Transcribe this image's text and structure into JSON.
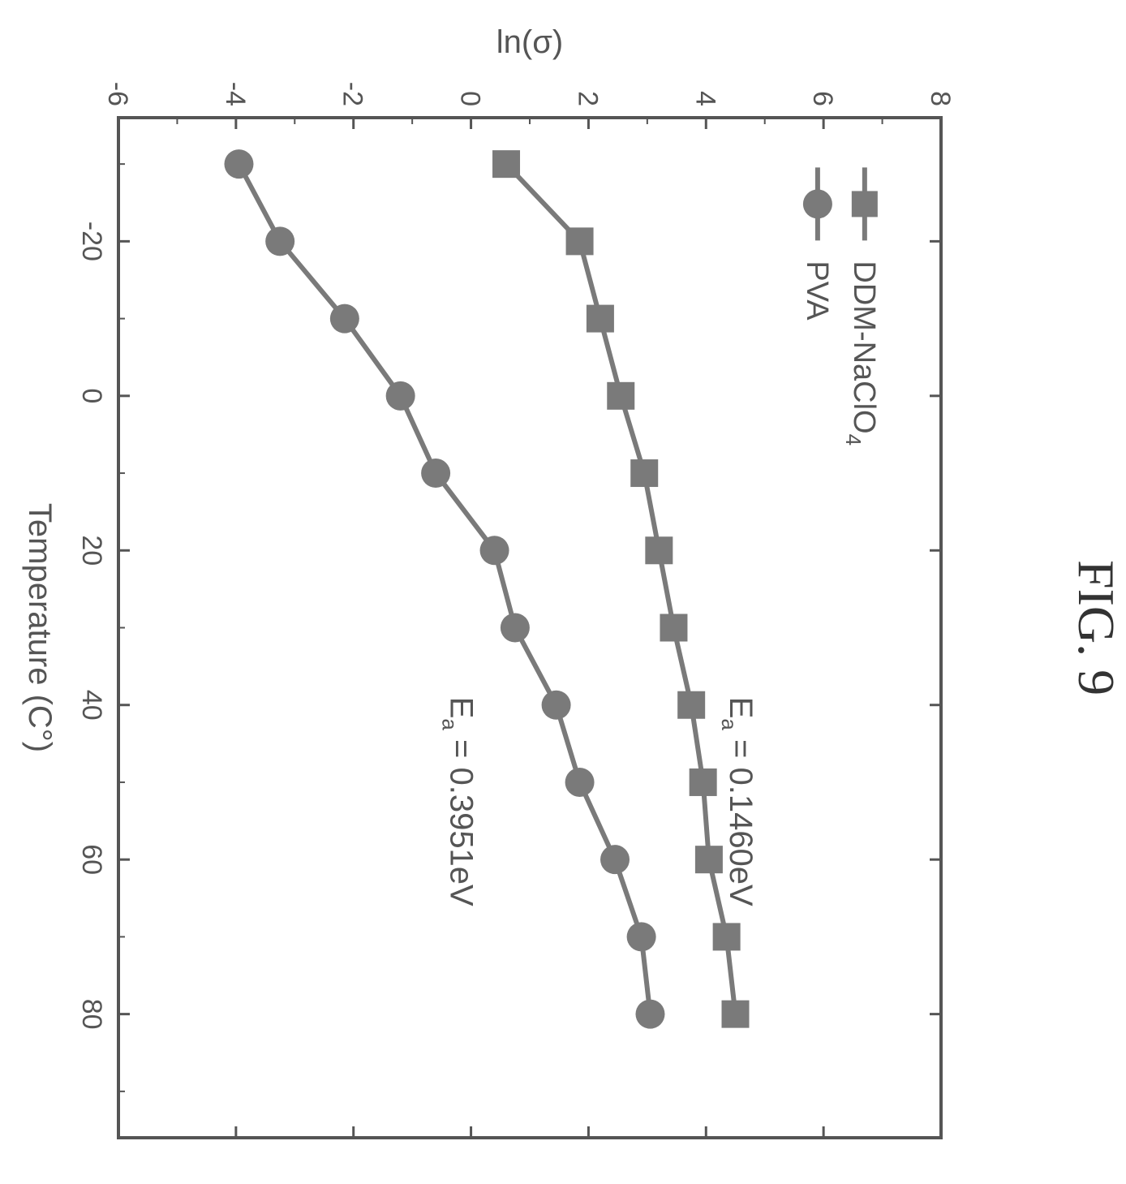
{
  "figure_label": "FIG. 9",
  "chart_data": {
    "type": "line",
    "xlabel": "Temperature (C°)",
    "ylabel": "ln(σ)",
    "xlim": [
      -36,
      96
    ],
    "ylim": [
      -6,
      8
    ],
    "x_ticks": [
      "-20",
      "0",
      "20",
      "40",
      "60",
      "80"
    ],
    "x_tick_values": [
      -20,
      0,
      20,
      40,
      60,
      80
    ],
    "y_ticks": [
      "-6",
      "-4",
      "-2",
      "0",
      "2",
      "4",
      "6",
      "8"
    ],
    "y_tick_values": [
      -6,
      -4,
      -2,
      0,
      2,
      4,
      6,
      8
    ],
    "x": [
      -30,
      -20,
      -10,
      0,
      10,
      20,
      30,
      40,
      50,
      60,
      70,
      80
    ],
    "series": [
      {
        "name": "DDM-NaClO4",
        "legend_label": "DDM-NaClO",
        "legend_subscript": "4",
        "marker": "square",
        "color": "#7a7a7a",
        "values": [
          0.6,
          1.85,
          2.2,
          2.55,
          2.95,
          3.2,
          3.45,
          3.75,
          3.95,
          4.05,
          4.35,
          4.5
        ]
      },
      {
        "name": "PVA",
        "legend_label": "PVA",
        "marker": "circle",
        "color": "#7a7a7a",
        "values": [
          -3.95,
          -3.25,
          -2.15,
          -1.2,
          -0.6,
          0.4,
          0.75,
          1.45,
          1.85,
          2.45,
          2.9,
          3.05
        ]
      }
    ],
    "annotations": [
      {
        "prefix": "E",
        "subscript": "a",
        "text": " = 0.1460eV",
        "x": 40,
        "y": 4.6
      },
      {
        "prefix": "E",
        "subscript": "a",
        "text": " = 0.3951eV",
        "x": 40,
        "y": -0.15
      }
    ],
    "legend_position": "top-left"
  }
}
